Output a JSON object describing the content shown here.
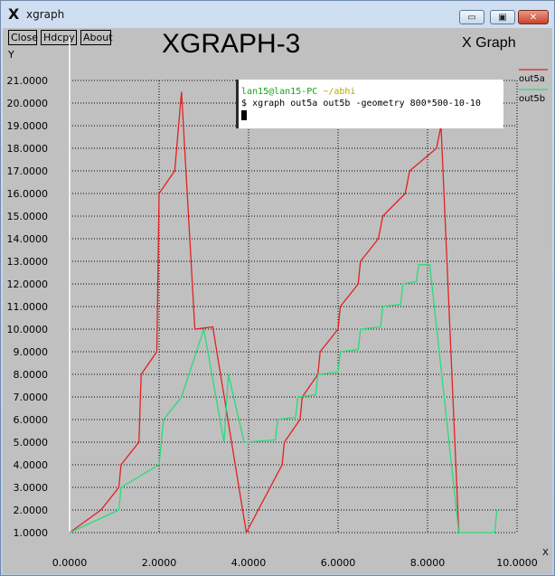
{
  "window": {
    "title": "xgraph",
    "app_icon": "X",
    "app_icon_name": "x-logo-icon",
    "controls": {
      "minimize": "▭",
      "maximize": "▣",
      "close": "✕"
    }
  },
  "toolbar": {
    "close_label": "Close",
    "hdcpy_label": "Hdcpy",
    "about_label": "About"
  },
  "header": {
    "title": "XGRAPH-3",
    "subtitle": "X Graph"
  },
  "terminal": {
    "user": "lan15@lan15-PC",
    "path": "~/abhi",
    "prompt": "$",
    "command": "xgraph out5a out5b -geometry 800*500-10-10"
  },
  "colors": {
    "background": "#c0c0c0",
    "grid": "#000000",
    "out5a": "#e32121",
    "out5b": "#29dc7a",
    "axis": "#ffffff"
  },
  "chart_data": {
    "type": "line",
    "title": "XGRAPH-3",
    "subtitle": "X Graph",
    "xlabel": "X",
    "ylabel": "Y",
    "xlim": [
      0,
      10
    ],
    "ylim": [
      1,
      21
    ],
    "xticks": [
      "0.0000",
      "2.0000",
      "4.0000",
      "6.0000",
      "8.0000",
      "10.0000"
    ],
    "yticks": [
      "1.0000",
      "2.0000",
      "3.0000",
      "4.0000",
      "5.0000",
      "6.0000",
      "7.0000",
      "8.0000",
      "9.0000",
      "10.0000",
      "11.0000",
      "12.0000",
      "13.0000",
      "14.0000",
      "15.0000",
      "16.0000",
      "17.0000",
      "18.0000",
      "19.0000",
      "20.0000",
      "21.0000"
    ],
    "grid": true,
    "legend": "right",
    "series": [
      {
        "name": "out5a",
        "color": "#e32121",
        "points": [
          [
            0.0,
            1.0
          ],
          [
            0.7,
            2.0
          ],
          [
            1.1,
            3.0
          ],
          [
            1.15,
            4.0
          ],
          [
            1.55,
            5.0
          ],
          [
            1.6,
            8.0
          ],
          [
            1.95,
            9.0
          ],
          [
            2.0,
            16.0
          ],
          [
            2.35,
            17.0
          ],
          [
            2.5,
            20.5
          ],
          [
            2.8,
            10.0
          ],
          [
            3.2,
            10.1
          ],
          [
            3.95,
            1.0
          ],
          [
            4.75,
            4.0
          ],
          [
            4.8,
            5.0
          ],
          [
            5.15,
            6.0
          ],
          [
            5.2,
            7.0
          ],
          [
            5.55,
            8.0
          ],
          [
            5.6,
            9.0
          ],
          [
            6.0,
            10.0
          ],
          [
            6.05,
            11.0
          ],
          [
            6.45,
            12.0
          ],
          [
            6.5,
            13.0
          ],
          [
            6.9,
            14.0
          ],
          [
            7.0,
            15.0
          ],
          [
            7.5,
            16.0
          ],
          [
            7.6,
            17.0
          ],
          [
            8.2,
            18.0
          ],
          [
            8.3,
            19.0
          ],
          [
            8.7,
            1.0
          ]
        ]
      },
      {
        "name": "out5b",
        "color": "#29dc7a",
        "points": [
          [
            0.0,
            1.0
          ],
          [
            1.1,
            2.0
          ],
          [
            1.15,
            3.0
          ],
          [
            2.0,
            4.0
          ],
          [
            2.1,
            6.0
          ],
          [
            2.5,
            7.0
          ],
          [
            3.0,
            10.0
          ],
          [
            3.45,
            5.0
          ],
          [
            3.55,
            8.0
          ],
          [
            3.9,
            5.0
          ],
          [
            4.6,
            5.1
          ],
          [
            4.65,
            6.0
          ],
          [
            5.05,
            6.1
          ],
          [
            5.1,
            7.0
          ],
          [
            5.5,
            7.1
          ],
          [
            5.55,
            8.0
          ],
          [
            6.0,
            8.1
          ],
          [
            6.05,
            9.0
          ],
          [
            6.45,
            9.1
          ],
          [
            6.5,
            10.0
          ],
          [
            6.95,
            10.1
          ],
          [
            7.0,
            11.0
          ],
          [
            7.4,
            11.1
          ],
          [
            7.45,
            12.0
          ],
          [
            7.75,
            12.1
          ],
          [
            7.8,
            12.85
          ],
          [
            8.05,
            12.85
          ],
          [
            8.7,
            1.0
          ],
          [
            9.5,
            1.0
          ],
          [
            9.55,
            2.0
          ]
        ]
      }
    ]
  }
}
